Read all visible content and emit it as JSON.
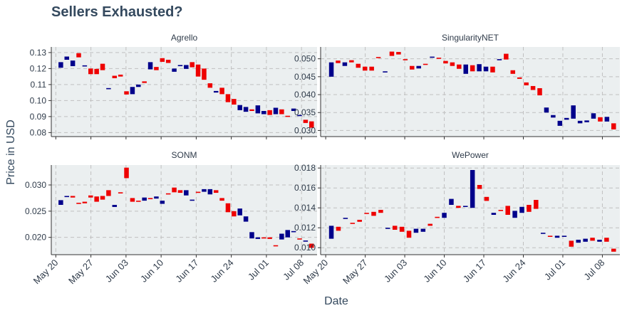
{
  "chart_data": {
    "type": "candlestick",
    "title": "Sellers Exhausted?",
    "xlabel": "Date",
    "ylabel": "Price in USD",
    "x_start": "2018-05-21",
    "x_ticks": [
      "May 20",
      "May 27",
      "Jun 03",
      "Jun 10",
      "Jun 17",
      "Jun 24",
      "Jul 01",
      "Jul 08"
    ],
    "grid": true,
    "colors": {
      "up": "#00008B",
      "down": "#EE0000",
      "panel_bg": "#EBEFF0",
      "grid": "#C0C0C0",
      "text": "#2F3B4A"
    },
    "panels": [
      {
        "name": "Agrello",
        "y_ticks": [
          "0.13",
          "0.12",
          "0.11",
          "0.10",
          "0.09",
          "0.08"
        ],
        "y_tick_values": [
          0.13,
          0.12,
          0.11,
          0.1,
          0.09,
          0.08
        ],
        "ylim": [
          0.0775,
          0.1335
        ],
        "candles": [
          [
            0.1205,
            0.124
          ],
          [
            0.1255,
            0.1275
          ],
          [
            0.1215,
            0.125
          ],
          [
            0.1296,
            0.127
          ],
          [
            0.1215,
            0.122
          ],
          [
            0.12,
            0.1165
          ],
          [
            0.1198,
            0.1165
          ],
          [
            0.123,
            0.119
          ],
          [
            0.1072,
            0.1078
          ],
          [
            0.1155,
            0.114
          ],
          [
            0.1162,
            0.115
          ],
          [
            0.1058,
            0.1038
          ],
          [
            0.104,
            0.1085
          ],
          [
            0.1085,
            0.11
          ],
          [
            0.112,
            0.111
          ],
          [
            0.1195,
            0.124
          ],
          [
            0.121,
            0.119
          ],
          [
            0.1265,
            0.1242
          ],
          [
            0.1255,
            0.1235
          ],
          [
            0.118,
            0.12
          ],
          [
            0.1218,
            0.1222
          ],
          [
            0.1198,
            0.1222
          ],
          [
            0.124,
            0.1208
          ],
          [
            0.1225,
            0.115
          ],
          [
            0.12,
            0.113
          ],
          [
            0.1108,
            0.108
          ],
          [
            0.105,
            0.106
          ],
          [
            0.108,
            0.104
          ],
          [
            0.104,
            0.099
          ],
          [
            0.101,
            0.0975
          ],
          [
            0.094,
            0.0972
          ],
          [
            0.093,
            0.096
          ],
          [
            0.0945,
            0.0935
          ],
          [
            0.092,
            0.097
          ],
          [
            0.0915,
            0.0935
          ],
          [
            0.094,
            0.091
          ],
          [
            0.0915,
            0.0955
          ],
          [
            0.0945,
            0.0915
          ],
          [
            0.0905,
            0.0902
          ],
          [
            0.0935,
            0.095
          ],
          [
            0.0906,
            0.091
          ],
          [
            0.088,
            0.086
          ],
          [
            0.087,
            0.083
          ]
        ]
      },
      {
        "name": "SingularityNET",
        "y_ticks": [
          "0.050",
          "0.045",
          "0.040",
          "0.035",
          "0.030"
        ],
        "y_tick_values": [
          0.05,
          0.045,
          0.04,
          0.035,
          0.03
        ],
        "ylim": [
          0.0283,
          0.0533
        ],
        "candles": [
          [
            0.045,
            0.049
          ],
          [
            0.0495,
            0.0488
          ],
          [
            0.048,
            0.049
          ],
          [
            0.0496,
            0.049
          ],
          [
            0.0486,
            0.0475
          ],
          [
            0.0478,
            0.0467
          ],
          [
            0.0478,
            0.0467
          ],
          [
            0.0505,
            0.0503
          ],
          [
            0.0462,
            0.0465
          ],
          [
            0.052,
            0.0508
          ],
          [
            0.0519,
            0.0512
          ],
          [
            0.0499,
            0.0497
          ],
          [
            0.048,
            0.047
          ],
          [
            0.0473,
            0.048
          ],
          [
            0.0486,
            0.0484
          ],
          [
            0.0504,
            0.0506
          ],
          [
            0.0503,
            0.0502
          ],
          [
            0.0494,
            0.0487
          ],
          [
            0.049,
            0.048
          ],
          [
            0.0484,
            0.0472
          ],
          [
            0.0458,
            0.0484
          ],
          [
            0.0482,
            0.0465
          ],
          [
            0.0465,
            0.0485
          ],
          [
            0.0465,
            0.0478
          ],
          [
            0.0478,
            0.0462
          ],
          [
            0.0497,
            0.0499
          ],
          [
            0.0514,
            0.0498
          ],
          [
            0.0468,
            0.0458
          ],
          [
            0.0448,
            0.0444
          ],
          [
            0.0434,
            0.0426
          ],
          [
            0.0424,
            0.0413
          ],
          [
            0.0418,
            0.0398
          ],
          [
            0.035,
            0.0364
          ],
          [
            0.0336,
            0.0343
          ],
          [
            0.0313,
            0.0327
          ],
          [
            0.033,
            0.0335
          ],
          [
            0.0333,
            0.037
          ],
          [
            0.032,
            0.0327
          ],
          [
            0.0323,
            0.0328
          ],
          [
            0.0333,
            0.0348
          ],
          [
            0.0337,
            0.0325
          ],
          [
            0.0325,
            0.0338
          ],
          [
            0.032,
            0.0303
          ]
        ]
      },
      {
        "name": "SONM",
        "y_ticks": [
          "0.030",
          "0.025",
          "0.020"
        ],
        "y_tick_values": [
          0.03,
          0.025,
          0.02
        ],
        "ylim": [
          0.0167,
          0.0338
        ],
        "candles": [
          [
            0.0262,
            0.0271
          ],
          [
            0.0277,
            0.0279
          ],
          [
            0.0279,
            0.0276
          ],
          [
            0.0266,
            0.0265
          ],
          [
            0.0268,
            0.0265
          ],
          [
            0.028,
            0.0276
          ],
          [
            0.0278,
            0.0268
          ],
          [
            0.0279,
            0.0272
          ],
          [
            0.029,
            0.0279
          ],
          [
            0.0258,
            0.0262
          ],
          [
            0.0286,
            0.0285
          ],
          [
            0.0333,
            0.0313
          ],
          [
            0.0275,
            0.0268
          ],
          [
            0.027,
            0.0268
          ],
          [
            0.027,
            0.0276
          ],
          [
            0.0275,
            0.0273
          ],
          [
            0.0274,
            0.0278
          ],
          [
            0.0264,
            0.027
          ],
          [
            0.0284,
            0.0282
          ],
          [
            0.0295,
            0.0286
          ],
          [
            0.029,
            0.0285
          ],
          [
            0.028,
            0.029
          ],
          [
            0.0271,
            0.0272
          ],
          [
            0.0287,
            0.0286
          ],
          [
            0.0287,
            0.0292
          ],
          [
            0.0282,
            0.0292
          ],
          [
            0.029,
            0.0285
          ],
          [
            0.0275,
            0.027
          ],
          [
            0.0265,
            0.0248
          ],
          [
            0.025,
            0.024
          ],
          [
            0.0242,
            0.0255
          ],
          [
            0.023,
            0.024
          ],
          [
            0.0198,
            0.021
          ],
          [
            0.0197,
            0.02
          ],
          [
            0.02,
            0.0198
          ],
          [
            0.02,
            0.0197
          ],
          [
            0.0185,
            0.0183
          ],
          [
            0.0196,
            0.0207
          ],
          [
            0.02,
            0.0214
          ],
          [
            0.021,
            0.0212
          ],
          [
            0.0198,
            0.0197
          ],
          [
            0.0194,
            0.0194
          ],
          [
            0.0188,
            0.018
          ]
        ]
      },
      {
        "name": "WePower",
        "y_ticks": [
          "0.018",
          "0.016",
          "0.014",
          "0.012",
          "0.010"
        ],
        "y_tick_values": [
          0.018,
          0.016,
          0.014,
          0.012,
          0.01
        ],
        "ylim": [
          0.0093,
          0.0183
        ],
        "candles": [
          [
            0.0109,
            0.0122
          ],
          [
            0.0121,
            0.0117
          ],
          [
            0.0129,
            0.013
          ],
          [
            0.0125,
            0.0124
          ],
          [
            0.0128,
            0.0126
          ],
          [
            0.0135,
            0.0134
          ],
          [
            0.0136,
            0.0132
          ],
          [
            0.0138,
            0.0135
          ],
          [
            0.012,
            0.012
          ],
          [
            0.0122,
            0.0118
          ],
          [
            0.0121,
            0.0116
          ],
          [
            0.0117,
            0.011
          ],
          [
            0.0115,
            0.0119
          ],
          [
            0.0116,
            0.0119
          ],
          [
            0.0124,
            0.0122
          ],
          [
            0.0131,
            0.013
          ],
          [
            0.013,
            0.0135
          ],
          [
            0.0143,
            0.0149
          ],
          [
            0.0142,
            0.014
          ],
          [
            0.0142,
            0.0142
          ],
          [
            0.014,
            0.0178
          ],
          [
            0.0163,
            0.0159
          ],
          [
            0.0151,
            0.0147
          ],
          [
            0.0133,
            0.0135
          ],
          [
            0.0138,
            0.0137
          ],
          [
            0.0142,
            0.0133
          ],
          [
            0.013,
            0.0137
          ],
          [
            0.0135,
            0.0141
          ],
          [
            0.0143,
            0.0136
          ],
          [
            0.0148,
            0.0139
          ],
          [
            0.0114,
            0.0115
          ],
          [
            0.0112,
            0.0111
          ],
          [
            0.011,
            0.0112
          ],
          [
            0.0112,
            0.0112
          ],
          [
            0.0107,
            0.0101
          ],
          [
            0.0105,
            0.0108
          ],
          [
            0.0106,
            0.0109
          ],
          [
            0.011,
            0.0107
          ],
          [
            0.0106,
            0.0108
          ],
          [
            0.011,
            0.0106
          ],
          [
            0.0099,
            0.0096
          ]
        ]
      }
    ]
  }
}
